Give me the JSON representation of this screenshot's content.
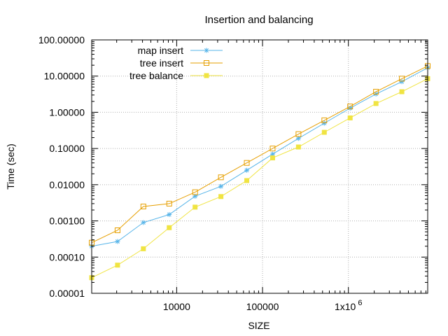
{
  "chart_data": {
    "type": "line",
    "title": "Insertion and balancing",
    "xlabel": "SIZE",
    "ylabel": "Time (sec)",
    "xscale": "log",
    "yscale": "log",
    "xlim": [
      1024,
      8388608
    ],
    "ylim": [
      1e-05,
      100
    ],
    "grid": true,
    "legend_position": "top-left",
    "x_ticks": [
      {
        "value": 10000,
        "label": "10000"
      },
      {
        "value": 100000,
        "label": "100000"
      },
      {
        "value": 1000000,
        "label": "1x10",
        "sup": "6"
      }
    ],
    "y_ticks": [
      {
        "value": 1e-05,
        "label": "0.00001"
      },
      {
        "value": 0.0001,
        "label": "0.00010"
      },
      {
        "value": 0.001,
        "label": "0.00100"
      },
      {
        "value": 0.01,
        "label": "0.01000"
      },
      {
        "value": 0.1,
        "label": "0.10000"
      },
      {
        "value": 1,
        "label": "1.00000"
      },
      {
        "value": 10,
        "label": "10.00000"
      },
      {
        "value": 100,
        "label": "100.00000"
      }
    ],
    "x": [
      1024,
      2048,
      4096,
      8192,
      16384,
      32768,
      65536,
      131072,
      262144,
      524288,
      1048576,
      2097152,
      4194304,
      8388608
    ],
    "series": [
      {
        "name": "map insert",
        "color": "#56b4e9",
        "marker": "asterisk",
        "values": [
          0.0002,
          0.00027,
          0.0009,
          0.0015,
          0.0048,
          0.009,
          0.025,
          0.07,
          0.19,
          0.5,
          1.3,
          3.2,
          7.0,
          17.0
        ]
      },
      {
        "name": "tree insert",
        "color": "#e69f00",
        "marker": "open-square",
        "values": [
          0.00025,
          0.00055,
          0.0025,
          0.003,
          0.0062,
          0.016,
          0.04,
          0.1,
          0.25,
          0.6,
          1.45,
          3.7,
          8.5,
          19.0
        ]
      },
      {
        "name": "tree balance",
        "color": "#f0e442",
        "marker": "filled-square",
        "values": [
          2.7e-05,
          6e-05,
          0.00017,
          0.00065,
          0.0024,
          0.0047,
          0.013,
          0.055,
          0.11,
          0.28,
          0.7,
          1.75,
          3.7,
          8.5
        ]
      }
    ]
  }
}
